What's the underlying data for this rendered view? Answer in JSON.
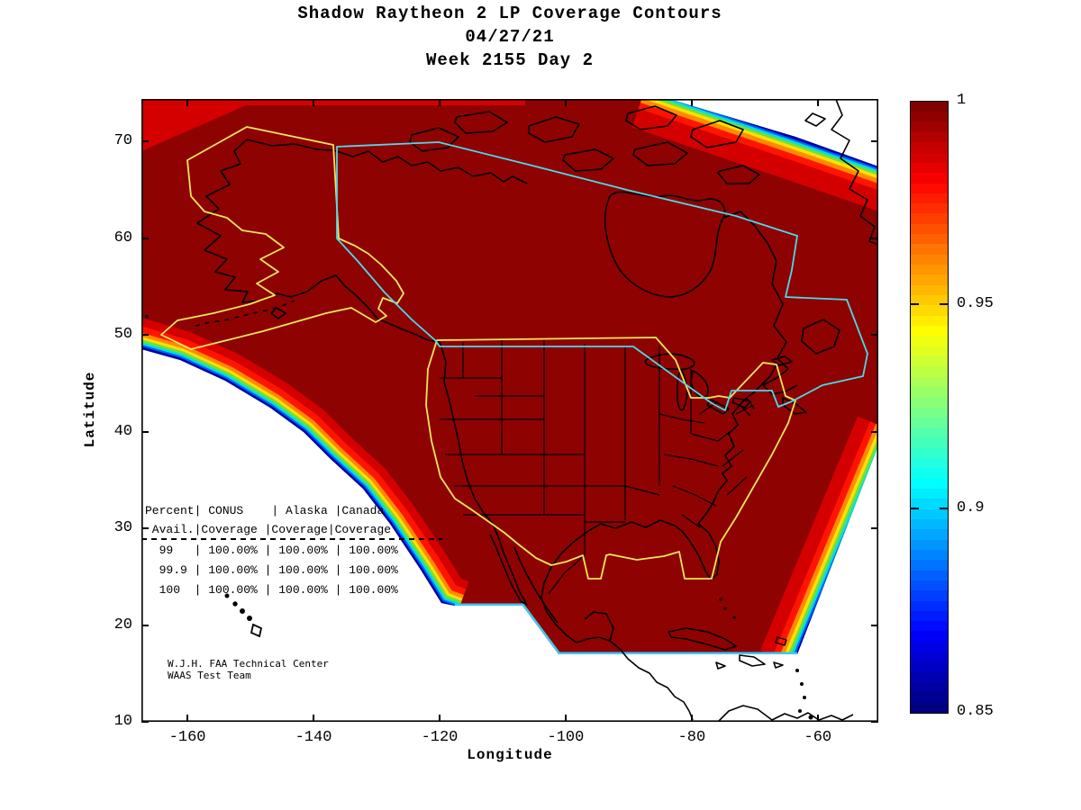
{
  "figure": {
    "title_line1": "Shadow Raytheon 2 LP Coverage Contours",
    "title_line2": "04/27/21",
    "title_line3": "Week 2155 Day 2"
  },
  "axes": {
    "xlabel": "Longitude",
    "ylabel": "Latitude",
    "xtick_labels": [
      "-160",
      "-140",
      "-120",
      "-100",
      "-80",
      "-60"
    ],
    "ytick_labels": [
      "70",
      "60",
      "50",
      "40",
      "30",
      "20",
      "10"
    ]
  },
  "coverage_table": {
    "header_line1": "Percent| CONUS    | Alaska |Canada",
    "header_line2": " Avail.|Coverage |Coverage|Coverage",
    "rows": [
      "  99   | 100.00% | 100.00% | 100.00%",
      "  99.9 | 100.00% | 100.00% | 100.00%",
      "  100  | 100.00% | 100.00% | 100.00%"
    ]
  },
  "credit": {
    "line1": "W.J.H. FAA Technical Center",
    "line2": "WAAS Test Team"
  },
  "colors": {
    "coverage_plateau": "#8E0202",
    "coverage_step": "#D40000",
    "conus_alaska_boundary": "#EFE75A",
    "canada_boundary": "#4DD9E8",
    "coastline": "#000000",
    "no_coverage": "#FFFFFF"
  },
  "chart_data": {
    "type": "heatmap",
    "subtype": "geographic-coverage-contour-map",
    "title": "Shadow Raytheon 2 LP Coverage Contours",
    "subtitle": [
      "04/27/21",
      "Week 2155 Day 2"
    ],
    "xlabel": "Longitude",
    "ylabel": "Latitude",
    "xlim": [
      -167.3,
      -50.4
    ],
    "ylim": [
      10,
      74.4
    ],
    "xticks": [
      -160,
      -140,
      -120,
      -100,
      -80,
      -60
    ],
    "yticks": [
      70,
      60,
      50,
      40,
      30,
      20,
      10
    ],
    "grid": false,
    "colorbar": {
      "min": 0.85,
      "max": 1,
      "ticks": [
        1,
        0.95,
        0.9,
        0.85
      ],
      "tick_labels": [
        "1",
        "0.95",
        "0.9",
        "0.85"
      ],
      "colormap": "jet",
      "position": "right"
    },
    "regions": [
      {
        "name": "CONUS",
        "boundary_color": "#EFE75A",
        "coverage_99": "100.00%",
        "coverage_99_9": "100.00%",
        "coverage_100": "100.00%"
      },
      {
        "name": "Alaska",
        "boundary_color": "#EFE75A",
        "coverage_99": "100.00%",
        "coverage_99_9": "100.00%",
        "coverage_100": "100.00%"
      },
      {
        "name": "Canada",
        "boundary_color": "#4DD9E8",
        "coverage_99": "100.00%",
        "coverage_99_9": "100.00%",
        "coverage_100": "100.00%"
      }
    ],
    "table": {
      "columns": [
        "Percent Avail.",
        "CONUS Coverage",
        "Alaska Coverage",
        "Canada Coverage"
      ],
      "rows": [
        [
          "99",
          "100.00%",
          "100.00%",
          "100.00%"
        ],
        [
          "99.9",
          "100.00%",
          "100.00%",
          "100.00%"
        ],
        [
          "100",
          "100.00%",
          "100.00%",
          "100.00%"
        ]
      ]
    }
  }
}
